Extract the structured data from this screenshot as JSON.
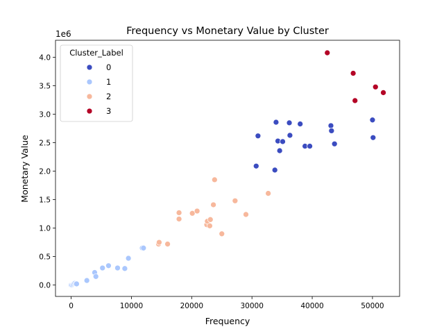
{
  "chart_data": {
    "type": "scatter",
    "title": "Frequency vs Monetary Value by Cluster",
    "xlabel": "Frequency",
    "ylabel": "Monetary Value",
    "y_offset_label": "1e6",
    "xlim": [
      -2600,
      54500
    ],
    "ylim": [
      -0.2,
      4.3
    ],
    "xticks": [
      0,
      10000,
      20000,
      30000,
      40000,
      50000
    ],
    "xtick_labels": [
      "0",
      "10000",
      "20000",
      "30000",
      "40000",
      "50000"
    ],
    "yticks": [
      0.0,
      0.5,
      1.0,
      1.5,
      2.0,
      2.5,
      3.0,
      3.5,
      4.0
    ],
    "ytick_labels": [
      "0.0",
      "0.5",
      "1.0",
      "1.5",
      "2.0",
      "2.5",
      "3.0",
      "3.5",
      "4.0"
    ],
    "grid": false,
    "legend": {
      "title": "Cluster_Label",
      "placement": "top-left"
    },
    "series": [
      {
        "name": "0",
        "color": "#3b4cc0",
        "points": [
          [
            30700,
            2.09
          ],
          [
            31000,
            2.62
          ],
          [
            33800,
            2.02
          ],
          [
            34000,
            2.86
          ],
          [
            34300,
            2.53
          ],
          [
            34600,
            2.36
          ],
          [
            35100,
            2.52
          ],
          [
            36200,
            2.85
          ],
          [
            36300,
            2.63
          ],
          [
            38000,
            2.83
          ],
          [
            38800,
            2.44
          ],
          [
            39600,
            2.44
          ],
          [
            43100,
            2.8
          ],
          [
            43200,
            2.71
          ],
          [
            43700,
            2.48
          ],
          [
            50000,
            2.9
          ],
          [
            50100,
            2.59
          ]
        ]
      },
      {
        "name": "1",
        "color": "#aac7fd",
        "points": [
          [
            0,
            0.0
          ],
          [
            150,
            0.0
          ],
          [
            300,
            0.01
          ],
          [
            450,
            0.02
          ],
          [
            600,
            0.03
          ],
          [
            750,
            0.02
          ],
          [
            900,
            0.02
          ],
          [
            2600,
            0.08
          ],
          [
            3900,
            0.22
          ],
          [
            4100,
            0.15
          ],
          [
            5200,
            0.3
          ],
          [
            6200,
            0.34
          ],
          [
            7700,
            0.3
          ],
          [
            8900,
            0.29
          ],
          [
            9500,
            0.47
          ],
          [
            11800,
            0.65
          ],
          [
            12000,
            0.65
          ]
        ]
      },
      {
        "name": "2",
        "color": "#f7b89c",
        "points": [
          [
            14500,
            0.72
          ],
          [
            14600,
            0.75
          ],
          [
            16000,
            0.72
          ],
          [
            17900,
            1.27
          ],
          [
            17900,
            1.16
          ],
          [
            20100,
            1.26
          ],
          [
            20900,
            1.3
          ],
          [
            22500,
            1.06
          ],
          [
            22600,
            1.12
          ],
          [
            23000,
            1.04
          ],
          [
            23100,
            1.15
          ],
          [
            23600,
            1.41
          ],
          [
            23800,
            1.85
          ],
          [
            25000,
            0.9
          ],
          [
            27200,
            1.48
          ],
          [
            29000,
            1.24
          ],
          [
            32700,
            1.61
          ]
        ]
      },
      {
        "name": "3",
        "color": "#b40426",
        "points": [
          [
            42500,
            4.08
          ],
          [
            46800,
            3.72
          ],
          [
            47100,
            3.24
          ],
          [
            50500,
            3.48
          ],
          [
            51800,
            3.38
          ]
        ]
      }
    ]
  }
}
